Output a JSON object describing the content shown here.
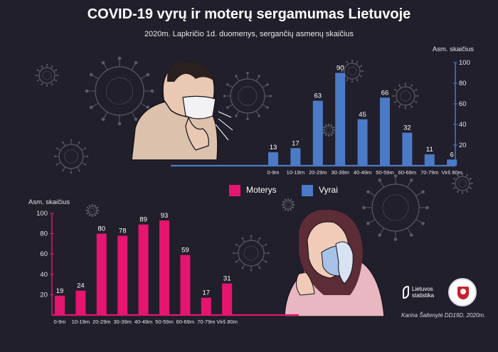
{
  "title": "COVID-19 vyrų ir moterų sergamumas Lietuvoje",
  "subtitle": "2020m. Lapkričio 1d. duomenys, sergančių asmenų skaičius",
  "legend": {
    "women_label": "Moterys",
    "men_label": "Vyrai"
  },
  "colors": {
    "women": "#e6156f",
    "men": "#4b7ac6",
    "background": "#201f2b"
  },
  "icons": [
    "virus-icon",
    "man-with-mask-illustration",
    "woman-with-mask-illustration",
    "lietuvos-statistika-logo",
    "university-seal"
  ],
  "logo_text": "Lietuvos statistika",
  "credit": "Karina Šaltenytė DD19D, 2020m.",
  "chart_data": [
    {
      "type": "bar",
      "series_name": "Vyrai",
      "color": "#4b7ac6",
      "ylabel": "Asm. skaičius",
      "ylim": [
        0,
        100
      ],
      "yticks": [
        20,
        40,
        60,
        80,
        100
      ],
      "categories": [
        "0-9m",
        "10-19m",
        "20-29m",
        "30-39m",
        "40-49m",
        "50-59m",
        "60-69m",
        "70-79m",
        "Virš 80m"
      ],
      "values": [
        13,
        17,
        63,
        90,
        45,
        66,
        32,
        11,
        6
      ],
      "y_axis_side": "right",
      "grid": false
    },
    {
      "type": "bar",
      "series_name": "Moterys",
      "color": "#e6156f",
      "ylabel": "Asm. skaičius",
      "ylim": [
        0,
        100
      ],
      "yticks": [
        20,
        40,
        60,
        80,
        100
      ],
      "categories": [
        "0-9m",
        "10-19m",
        "20-29m",
        "30-39m",
        "40-49m",
        "50-59m",
        "60-69m",
        "70-79m",
        "Virš 80m"
      ],
      "values": [
        19,
        24,
        80,
        78,
        89,
        93,
        59,
        17,
        31
      ],
      "y_axis_side": "left",
      "grid": false
    }
  ]
}
